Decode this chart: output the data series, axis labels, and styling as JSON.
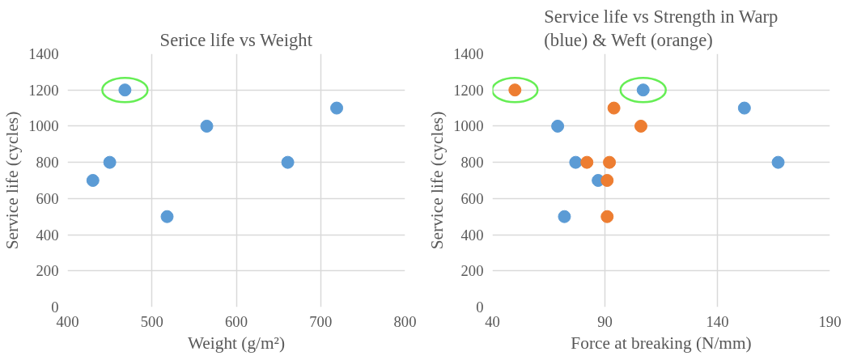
{
  "chart_data": [
    {
      "type": "scatter",
      "title": "Serice life vs Weight",
      "xlabel": "Weight (g/m²)",
      "ylabel": "Service life (cycles)",
      "x": [
        430,
        450,
        468,
        518,
        565,
        661,
        719
      ],
      "series": [
        {
          "color": "#5b9bd5",
          "values": [
            700,
            800,
            1200,
            500,
            1000,
            800,
            1100
          ]
        }
      ],
      "xlim": [
        400,
        800
      ],
      "xticks": [
        400,
        500,
        600,
        700,
        800
      ],
      "ylim": [
        0,
        1400
      ],
      "yticks": [
        0,
        200,
        400,
        600,
        800,
        1000,
        1200,
        1400
      ],
      "grid": true,
      "marker": "circle"
    },
    {
      "type": "scatter",
      "title": "Service life vs Strength in Warp (blue) & Weft (orange)",
      "xlabel": "Force at breaking (N/mm)",
      "ylabel": "Service life (cycles)",
      "series": [
        {
          "color": "#5b9bd5",
          "x": [
            69,
            72,
            77,
            87,
            107,
            152,
            167
          ],
          "values": [
            1000,
            500,
            800,
            700,
            1200,
            1100,
            800
          ]
        },
        {
          "color": "#ed7d31",
          "x": [
            50,
            94,
            106,
            82,
            92,
            91,
            91
          ],
          "values": [
            1200,
            1100,
            1000,
            800,
            800,
            700,
            500
          ]
        }
      ],
      "xlim": [
        40,
        190
      ],
      "xticks": [
        40,
        90,
        140,
        190
      ],
      "ylim": [
        0,
        1400
      ],
      "yticks": [
        0,
        200,
        400,
        600,
        800,
        1000,
        1200,
        1400
      ],
      "grid": true,
      "marker": "circle"
    }
  ]
}
